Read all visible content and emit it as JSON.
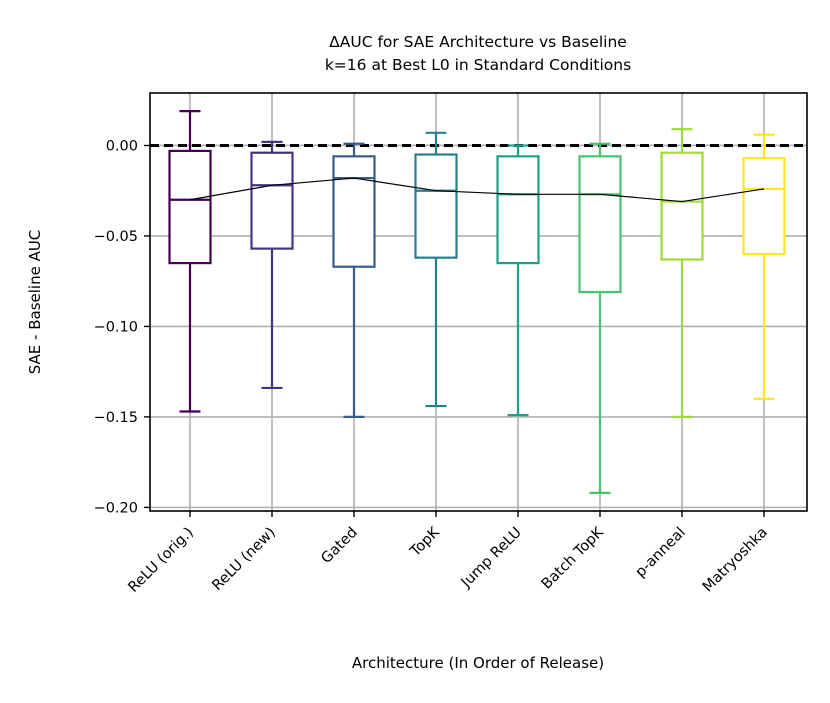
{
  "chart_data": {
    "type": "boxplot",
    "title_line1": "ΔAUC for SAE Architecture vs Baseline",
    "title_line2": "k=16 at Best L0 in Standard Conditions",
    "xlabel": "Architecture (In Order of Release)",
    "ylabel": "SAE - Baseline AUC",
    "ylim": [
      -0.202,
      0.029
    ],
    "yticks": [
      0.0,
      -0.05,
      -0.1,
      -0.15,
      -0.2
    ],
    "ytick_labels": [
      "0.00",
      "−0.05",
      "−0.10",
      "−0.15",
      "−0.20"
    ],
    "grid": true,
    "reference_line": {
      "y": 0.0,
      "style": "dashed",
      "color": "#000000"
    },
    "median_line_color": "#000000",
    "categories": [
      "ReLU (orig.)",
      "ReLU (new)",
      "Gated",
      "TopK",
      "Jump ReLU",
      "Batch TopK",
      "p-anneal",
      "Matryoshka"
    ],
    "boxes": [
      {
        "name": "ReLU (orig.)",
        "whisker_high": 0.019,
        "q3": -0.003,
        "median": -0.03,
        "q1": -0.065,
        "whisker_low": -0.147,
        "color": "#440154"
      },
      {
        "name": "ReLU (new)",
        "whisker_high": 0.002,
        "q3": -0.004,
        "median": -0.022,
        "q1": -0.057,
        "whisker_low": -0.134,
        "color": "#46327e"
      },
      {
        "name": "Gated",
        "whisker_high": 0.001,
        "q3": -0.006,
        "median": -0.018,
        "q1": -0.067,
        "whisker_low": -0.15,
        "color": "#365c8d"
      },
      {
        "name": "TopK",
        "whisker_high": 0.007,
        "q3": -0.005,
        "median": -0.025,
        "q1": -0.062,
        "whisker_low": -0.144,
        "color": "#277f8e"
      },
      {
        "name": "Jump ReLU",
        "whisker_high": 0.0,
        "q3": -0.006,
        "median": -0.027,
        "q1": -0.065,
        "whisker_low": -0.149,
        "color": "#1fa187"
      },
      {
        "name": "Batch TopK",
        "whisker_high": 0.001,
        "q3": -0.006,
        "median": -0.027,
        "q1": -0.081,
        "whisker_low": -0.192,
        "color": "#4ac16d"
      },
      {
        "name": "p-anneal",
        "whisker_high": 0.009,
        "q3": -0.004,
        "median": -0.031,
        "q1": -0.063,
        "whisker_low": -0.15,
        "color": "#a0da39"
      },
      {
        "name": "Matryoshka",
        "whisker_high": 0.006,
        "q3": -0.007,
        "median": -0.024,
        "q1": -0.06,
        "whisker_low": -0.14,
        "color": "#fde725"
      }
    ]
  }
}
